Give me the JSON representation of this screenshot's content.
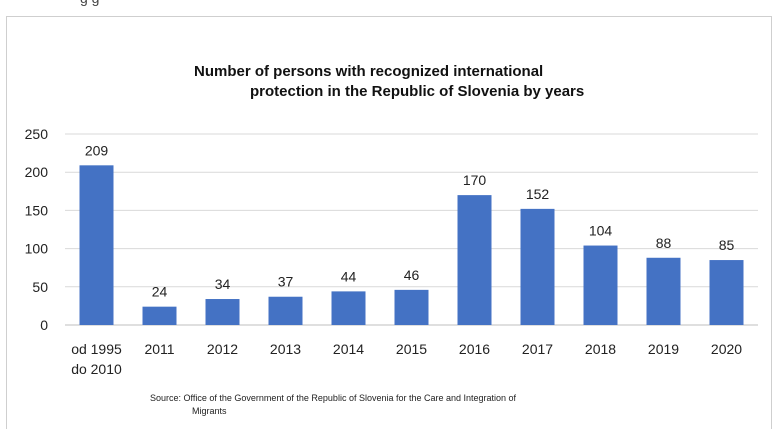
{
  "top_fragment": "g    g",
  "chart_data": {
    "type": "bar",
    "title_line1": "Number of persons with recognized international",
    "title_line2": "protection in the Republic of Slovenia by years",
    "categories": [
      [
        "od 1995",
        "do 2010"
      ],
      [
        "2011"
      ],
      [
        "2012"
      ],
      [
        "2013"
      ],
      [
        "2014"
      ],
      [
        "2015"
      ],
      [
        "2016"
      ],
      [
        "2017"
      ],
      [
        "2018"
      ],
      [
        "2019"
      ],
      [
        "2020"
      ]
    ],
    "values": [
      209,
      24,
      34,
      37,
      44,
      46,
      170,
      152,
      104,
      88,
      85
    ],
    "ylim": [
      0,
      250
    ],
    "yticks": [
      0,
      50,
      100,
      150,
      200,
      250
    ],
    "grid": true,
    "bar_color": "#4472c4",
    "source_line1": "Source: Office of the Government of the Republic of Slovenia for the Care and Integration of",
    "source_line2": "Migrants"
  }
}
